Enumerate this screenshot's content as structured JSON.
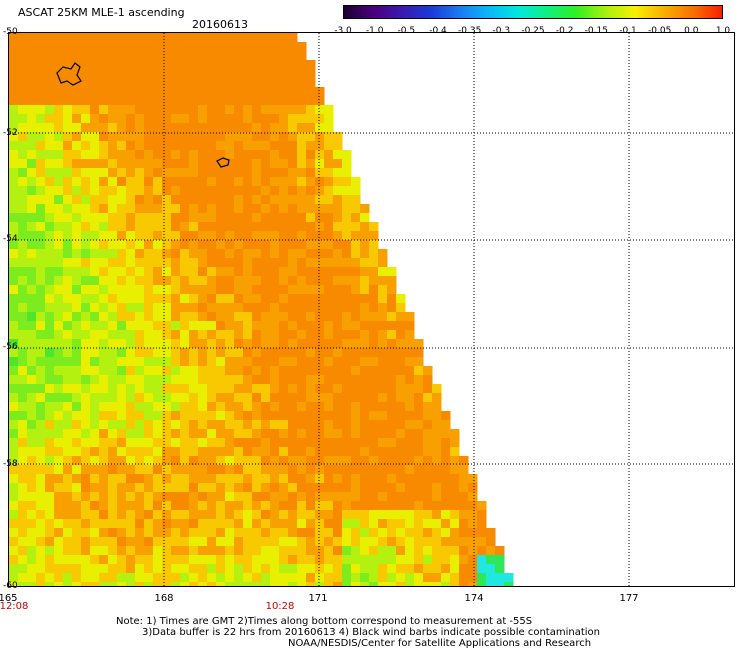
{
  "header": {
    "title": "ASCAT 25KM MLE-1 ascending",
    "date": "20160613"
  },
  "colorbar": {
    "labels": [
      "-3.0",
      "-1.0",
      "-0.5",
      "-0.4",
      "-0.35",
      "-0.3",
      "-0.25",
      "-0.2",
      "-0.15",
      "-0.1",
      "-0.05",
      "0.0",
      "1.0"
    ],
    "colors": [
      "#1a0030",
      "#4a007a",
      "#3a1ab0",
      "#1a3ad8",
      "#1a7cf0",
      "#0ab8f8",
      "#00e8e0",
      "#10f080",
      "#30f020",
      "#a8f010",
      "#f8f000",
      "#f8b000",
      "#f87000",
      "#f82000"
    ]
  },
  "map": {
    "lat_labels": [
      "-50",
      "-52",
      "-54",
      "-56",
      "-58",
      "-60"
    ],
    "lon_labels": [
      "165",
      "168",
      "171",
      "174",
      "177"
    ],
    "time_labels": [
      "12:08",
      "10:28"
    ],
    "time_color": "#cc0000"
  },
  "footer": {
    "line1": "Note: 1) Times are GMT 2)Times along bottom correspond to measurement at -55S",
    "line2": "3)Data buffer is 22 hrs from 20160613 4) Black wind barbs indicate possible contamination",
    "line3": "NOAA/NESDIS/Center for Satellite Applications and Research"
  }
}
